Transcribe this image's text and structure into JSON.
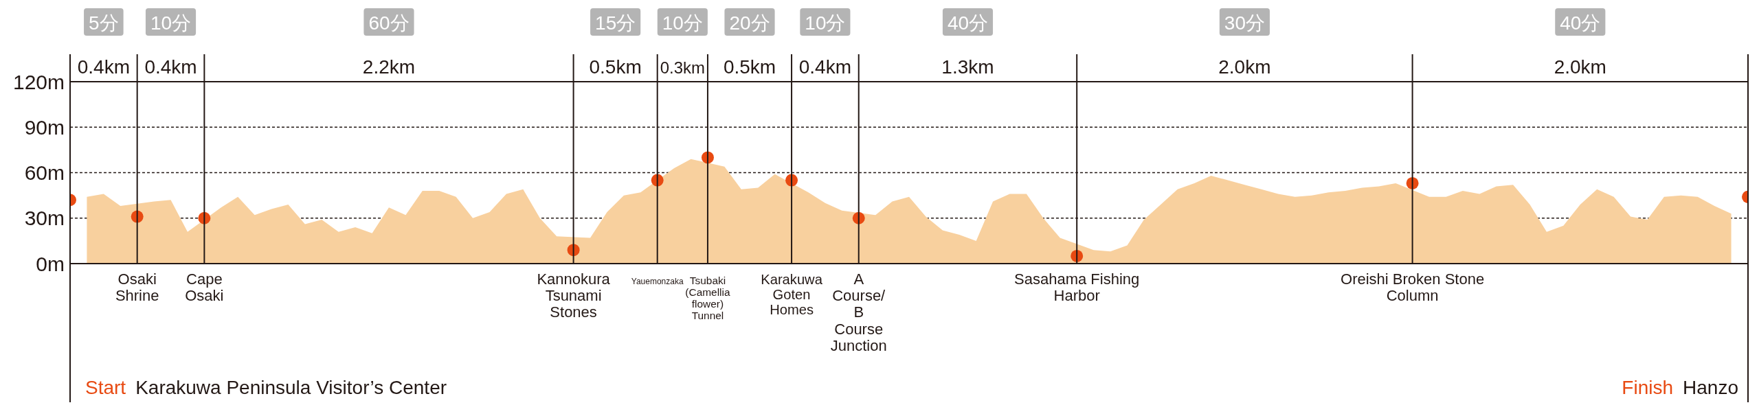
{
  "chart_data": {
    "type": "area",
    "categories": [
      null,
      null,
      null,
      null,
      "Osaki Shrine",
      null,
      null,
      null,
      "Cape Osaki",
      null,
      null,
      null,
      null,
      null,
      null,
      null,
      null,
      null,
      null,
      null,
      null,
      null,
      null,
      null,
      null,
      null,
      null,
      null,
      null,
      null,
      "Kannokura Tsunami Stones",
      null,
      null,
      null,
      null,
      "Yauemonzaka",
      null,
      null,
      "Tsubaki (Camellia flower) Tunnel",
      null,
      null,
      null,
      null,
      "Karakuwa Goten Homes",
      null,
      null,
      null,
      "A Course/ B Course Junction",
      null,
      null,
      null,
      null,
      null,
      null,
      null,
      null,
      null,
      null,
      null,
      null,
      "Sasahama Fishing Harbor",
      null,
      null,
      null,
      null,
      null,
      null,
      null,
      null,
      null,
      null,
      null,
      null,
      null,
      null,
      null,
      null,
      null,
      null,
      null,
      "Oreishi Broken Stone Column",
      null,
      null,
      null,
      null,
      null,
      null,
      null,
      null,
      null,
      null,
      null,
      null,
      null,
      null,
      null,
      null,
      null,
      null,
      null,
      null
    ],
    "series": [
      {
        "type": "area",
        "color": "#f8d09e",
        "values": [
          null,
          44,
          46,
          38,
          null,
          41,
          42,
          21,
          null,
          37,
          44,
          32,
          36,
          39,
          26,
          29,
          21,
          24,
          20,
          37,
          32,
          48,
          48,
          44,
          30,
          34,
          46,
          49,
          30,
          18,
          null,
          17,
          34,
          45,
          47,
          null,
          63,
          69,
          null,
          64,
          49,
          50,
          59,
          null,
          47,
          40,
          35,
          null,
          32,
          41,
          44,
          31,
          22,
          19,
          15,
          41,
          46,
          46,
          30,
          17,
          null,
          9,
          8,
          12,
          29,
          39,
          49,
          53,
          58,
          55,
          52,
          49,
          46,
          44,
          45,
          47,
          48,
          50,
          51,
          53,
          null,
          44,
          44,
          48,
          46,
          51,
          52,
          39,
          21,
          25,
          39,
          49,
          44,
          31,
          29,
          44,
          45,
          44,
          38,
          33,
          null
        ]
      },
      {
        "type": "scatter",
        "color": "#e84a12",
        "marker": "circle",
        "values": [
          42,
          null,
          null,
          null,
          31,
          null,
          null,
          null,
          30,
          null,
          null,
          null,
          null,
          null,
          null,
          null,
          null,
          null,
          null,
          null,
          null,
          null,
          null,
          null,
          null,
          null,
          null,
          null,
          null,
          null,
          9,
          null,
          null,
          null,
          null,
          55,
          null,
          null,
          70,
          null,
          null,
          null,
          null,
          55,
          null,
          null,
          null,
          30,
          null,
          null,
          null,
          null,
          null,
          null,
          null,
          null,
          null,
          null,
          null,
          null,
          5,
          null,
          null,
          null,
          null,
          null,
          null,
          null,
          null,
          null,
          null,
          null,
          null,
          null,
          null,
          null,
          null,
          null,
          null,
          null,
          53,
          null,
          null,
          null,
          null,
          null,
          null,
          null,
          null,
          null,
          null,
          null,
          null,
          null,
          null,
          null,
          null,
          null,
          null,
          null,
          44
        ]
      }
    ],
    "ylim": [
      0,
      120
    ],
    "yticks": [
      {
        "value": 0,
        "label": "0m"
      },
      {
        "value": 30,
        "label": "30m"
      },
      {
        "value": 60,
        "label": "60m"
      },
      {
        "value": 90,
        "label": "90m"
      },
      {
        "value": 120,
        "label": "120m"
      }
    ],
    "grid": "y",
    "ref_lines": [
      {
        "axis": "x",
        "value": "Osaki Shrine"
      },
      {
        "axis": "x",
        "value": "Cape Osaki"
      },
      {
        "axis": "x",
        "value": "Kannokura Tsunami Stones"
      },
      {
        "axis": "x",
        "value": "Yauemonzaka"
      },
      {
        "axis": "x",
        "value": "Tsubaki (Camellia flower) Tunnel"
      },
      {
        "axis": "x",
        "value": "Karakuwa Goten Homes"
      },
      {
        "axis": "x",
        "value": "A Course/ B Course Junction"
      },
      {
        "axis": "x",
        "value": "Sasahama Fishing Harbor"
      },
      {
        "axis": "x",
        "value": "Oreishi Broken Stone Column"
      }
    ],
    "annotations": [
      "0.4km",
      "0.4km",
      "2.2km",
      "0.5km",
      "0.3km",
      "0.5km",
      "0.4km",
      "1.3km",
      "2.0km",
      "2.0km",
      "5分",
      "10分",
      "60分",
      "15分",
      "10分",
      "20分",
      "10分",
      "40分",
      "30分",
      "40分",
      "Start",
      "Karakuwa Peninsula Visitor’s Center",
      "Finish",
      "Hanzo"
    ]
  }
}
